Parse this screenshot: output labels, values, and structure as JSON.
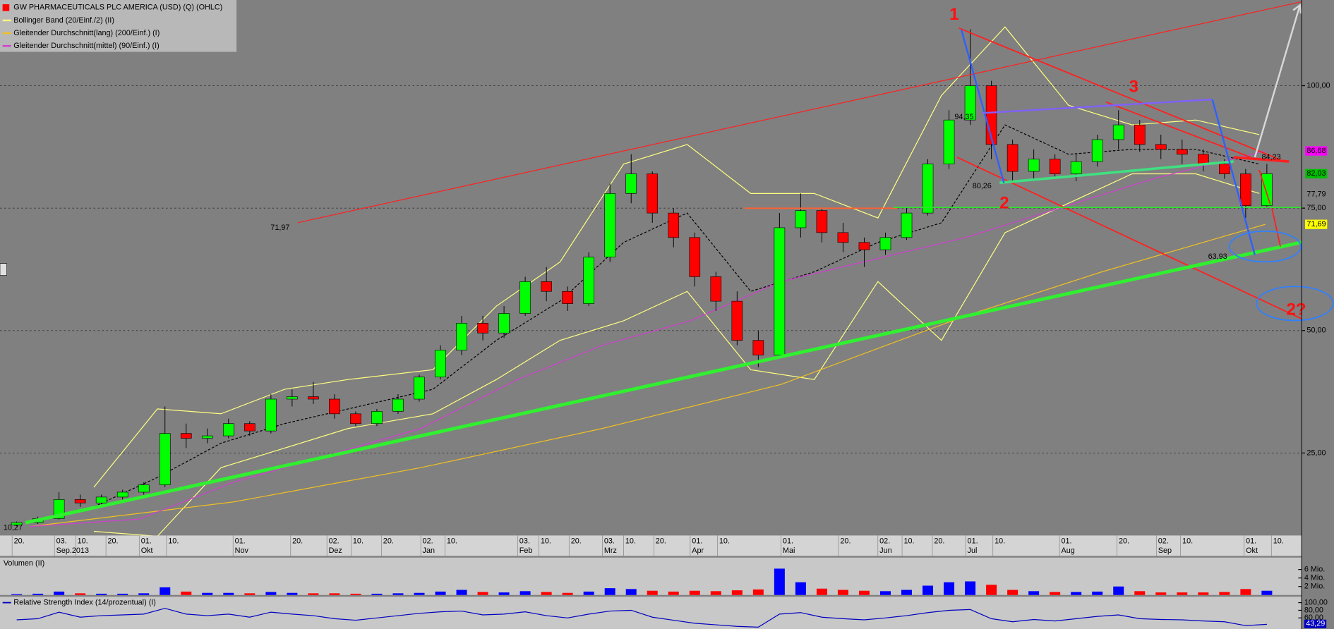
{
  "chart_data": {
    "type": "candlestick",
    "title": "GW PHARMACEUTICALS PLC AMERICA (USD) (Q) (OHLC)",
    "xlim": [
      "2013-08-16",
      "2014-10-20"
    ],
    "ylim": [
      8.5,
      117.5
    ],
    "yticks": [
      {
        "value": 100,
        "label": "100,00"
      },
      {
        "value": 75,
        "label": "75,00"
      },
      {
        "value": 50,
        "label": "50,00"
      },
      {
        "value": 25,
        "label": "25,00"
      }
    ],
    "grid": true,
    "xticks": [
      {
        "value": "2013-08-20",
        "label": "20."
      },
      {
        "value": "2013-09-03",
        "label": "03."
      },
      {
        "value": "2013-09-10",
        "label": "10."
      },
      {
        "value": "2013-09-20",
        "label": "20."
      },
      {
        "value": "2013-10-01",
        "label": "01."
      },
      {
        "value": "2013-10-10",
        "label": "10."
      },
      {
        "value": "2013-11-01",
        "label": "01."
      },
      {
        "value": "2013-11-20",
        "label": "20."
      },
      {
        "value": "2013-12-02",
        "label": "02."
      },
      {
        "value": "2013-12-10",
        "label": "10."
      },
      {
        "value": "2013-12-20",
        "label": "20."
      },
      {
        "value": "2014-01-02",
        "label": "02."
      },
      {
        "value": "2014-01-10",
        "label": "10."
      },
      {
        "value": "2014-02-03",
        "label": "03."
      },
      {
        "value": "2014-02-10",
        "label": "10."
      },
      {
        "value": "2014-02-20",
        "label": "20."
      },
      {
        "value": "2014-03-03",
        "label": "03."
      },
      {
        "value": "2014-03-10",
        "label": "10."
      },
      {
        "value": "2014-03-20",
        "label": "20."
      },
      {
        "value": "2014-04-01",
        "label": "01."
      },
      {
        "value": "2014-04-10",
        "label": "10."
      },
      {
        "value": "2014-05-01",
        "label": "01."
      },
      {
        "value": "2014-05-20",
        "label": "20."
      },
      {
        "value": "2014-06-02",
        "label": "02."
      },
      {
        "value": "2014-06-10",
        "label": "10."
      },
      {
        "value": "2014-06-20",
        "label": "20."
      },
      {
        "value": "2014-07-01",
        "label": "01."
      },
      {
        "value": "2014-07-10",
        "label": "10."
      },
      {
        "value": "2014-08-01",
        "label": "01."
      },
      {
        "value": "2014-08-20",
        "label": "20."
      },
      {
        "value": "2014-09-02",
        "label": "02."
      },
      {
        "value": "2014-09-10",
        "label": "10."
      },
      {
        "value": "2014-10-01",
        "label": "01."
      },
      {
        "value": "2014-10-10",
        "label": "10."
      }
    ],
    "xtick_months": [
      {
        "value": "2013-09-03",
        "label": "Sep.2013"
      },
      {
        "value": "2013-10-01",
        "label": "Okt"
      },
      {
        "value": "2013-11-01",
        "label": "Nov"
      },
      {
        "value": "2013-12-02",
        "label": "Dez"
      },
      {
        "value": "2014-01-02",
        "label": "Jan"
      },
      {
        "value": "2014-02-03",
        "label": "Feb"
      },
      {
        "value": "2014-03-03",
        "label": "Mrz"
      },
      {
        "value": "2014-04-01",
        "label": "Apr"
      },
      {
        "value": "2014-05-01",
        "label": "Mai"
      },
      {
        "value": "2014-06-02",
        "label": "Jun"
      },
      {
        "value": "2014-07-01",
        "label": "Jul"
      },
      {
        "value": "2014-08-01",
        "label": "Aug"
      },
      {
        "value": "2014-09-02",
        "label": "Sep"
      },
      {
        "value": "2014-10-01",
        "label": "Okt"
      }
    ],
    "x": [
      "2013-08-19",
      "2013-08-26",
      "2013-09-02",
      "2013-09-09",
      "2013-09-16",
      "2013-09-23",
      "2013-09-30",
      "2013-10-07",
      "2013-10-14",
      "2013-10-21",
      "2013-10-28",
      "2013-11-04",
      "2013-11-11",
      "2013-11-18",
      "2013-11-25",
      "2013-12-02",
      "2013-12-09",
      "2013-12-16",
      "2013-12-23",
      "2013-12-30",
      "2014-01-06",
      "2014-01-13",
      "2014-01-20",
      "2014-01-27",
      "2014-02-03",
      "2014-02-10",
      "2014-02-17",
      "2014-02-24",
      "2014-03-03",
      "2014-03-10",
      "2014-03-17",
      "2014-03-24",
      "2014-03-31",
      "2014-04-07",
      "2014-04-14",
      "2014-04-21",
      "2014-04-28",
      "2014-05-05",
      "2014-05-12",
      "2014-05-19",
      "2014-05-26",
      "2014-06-02",
      "2014-06-09",
      "2014-06-16",
      "2014-06-23",
      "2014-06-30",
      "2014-07-07",
      "2014-07-14",
      "2014-07-21",
      "2014-07-28",
      "2014-08-04",
      "2014-08-11",
      "2014-08-18",
      "2014-08-25",
      "2014-09-01",
      "2014-09-08",
      "2014-09-15",
      "2014-09-22",
      "2014-09-29",
      "2014-10-06"
    ],
    "ohlc": [
      [
        10.3,
        11,
        10,
        10.8
      ],
      [
        10.8,
        12,
        10.5,
        11.6
      ],
      [
        11.6,
        17,
        11.4,
        15.5
      ],
      [
        15.5,
        16.5,
        14,
        14.8
      ],
      [
        14.8,
        16.5,
        14.5,
        16
      ],
      [
        16,
        17.5,
        15.5,
        17
      ],
      [
        17,
        19,
        16.5,
        18.5
      ],
      [
        18.5,
        34.5,
        18,
        29
      ],
      [
        29,
        31,
        26,
        28
      ],
      [
        28,
        30,
        27,
        28.5
      ],
      [
        28.5,
        32,
        28,
        31
      ],
      [
        31,
        31.5,
        28.5,
        29.5
      ],
      [
        29.5,
        37,
        29,
        36
      ],
      [
        36,
        38,
        34.5,
        36.5
      ],
      [
        36.5,
        39.5,
        35,
        36
      ],
      [
        36,
        37,
        32,
        33
      ],
      [
        33,
        33.5,
        30.5,
        31
      ],
      [
        31,
        34,
        30.5,
        33.5
      ],
      [
        33.5,
        37,
        33,
        36
      ],
      [
        36,
        41,
        35.5,
        40.5
      ],
      [
        40.5,
        47,
        40,
        46
      ],
      [
        46,
        53,
        45,
        51.5
      ],
      [
        51.5,
        53,
        48,
        49.5
      ],
      [
        49.5,
        55,
        48.5,
        53.5
      ],
      [
        53.5,
        61,
        53,
        60
      ],
      [
        60,
        63,
        56,
        58
      ],
      [
        58,
        59,
        54,
        55.5
      ],
      [
        55.5,
        66,
        55,
        65
      ],
      [
        65,
        80,
        64,
        78
      ],
      [
        78,
        86,
        76,
        82
      ],
      [
        82,
        82.5,
        72,
        74
      ],
      [
        74,
        75,
        67,
        69
      ],
      [
        69,
        70,
        59,
        61
      ],
      [
        61,
        62,
        54,
        56
      ],
      [
        56,
        58,
        47,
        48
      ],
      [
        48,
        50,
        42.5,
        45
      ],
      [
        45,
        74,
        44.5,
        71
      ],
      [
        71,
        78,
        69,
        74.5
      ],
      [
        74.5,
        75,
        68,
        70
      ],
      [
        70,
        72,
        66,
        68
      ],
      [
        68,
        69,
        63,
        66.5
      ],
      [
        66.5,
        70,
        65.5,
        69
      ],
      [
        69,
        75,
        68.5,
        74
      ],
      [
        74,
        85,
        73.5,
        84
      ],
      [
        84,
        95,
        83,
        93
      ],
      [
        93,
        111.5,
        92,
        100
      ],
      [
        100,
        101,
        85,
        88
      ],
      [
        88,
        89,
        80,
        82.5
      ],
      [
        82.5,
        87,
        81,
        85
      ],
      [
        85,
        86,
        81,
        82
      ],
      [
        82,
        86,
        80.5,
        84.5
      ],
      [
        84.5,
        90,
        83.5,
        89
      ],
      [
        89,
        95,
        87,
        92
      ],
      [
        92,
        93,
        86.5,
        88
      ],
      [
        88,
        90,
        85,
        87
      ],
      [
        87,
        89,
        84,
        86
      ],
      [
        86,
        87,
        82.5,
        84
      ],
      [
        84,
        85,
        81,
        82
      ],
      [
        82,
        83,
        73,
        75.5
      ],
      [
        75.5,
        84,
        75,
        82.03
      ]
    ],
    "up_color": "#00ff00",
    "down_color": "#ff0000",
    "series": [
      {
        "name": "Bollinger Band (20/Einf./2) (II)",
        "color": "#ffff80",
        "mid_color": "#000000",
        "x": [
          "2013-09-16",
          "2013-10-07",
          "2013-10-28",
          "2013-11-18",
          "2013-12-09",
          "2014-01-06",
          "2014-01-27",
          "2014-02-17",
          "2014-03-10",
          "2014-03-31",
          "2014-04-21",
          "2014-05-12",
          "2014-06-02",
          "2014-06-23",
          "2014-07-14",
          "2014-08-04",
          "2014-08-25",
          "2014-09-15",
          "2014-10-06"
        ],
        "upper": [
          18,
          34,
          33,
          38,
          40,
          42,
          55,
          64,
          84,
          88,
          78,
          78,
          73,
          98,
          112,
          96,
          92,
          93,
          90
        ],
        "values": [
          14,
          20,
          27,
          31,
          34,
          38,
          48,
          56,
          68,
          74,
          58,
          62,
          68,
          72,
          92,
          86,
          87,
          87,
          84
        ],
        "lower": [
          9,
          8,
          22,
          26,
          30,
          33,
          40,
          48,
          52,
          58,
          42,
          40,
          60,
          48,
          70,
          76,
          82,
          82,
          78
        ]
      },
      {
        "name": "Gleitender Durchschnitt(lang) (200/Einf.) (I)",
        "color": "#f0c020",
        "x": [
          "2013-08-26",
          "2013-11-01",
          "2014-01-02",
          "2014-03-03",
          "2014-05-01",
          "2014-07-01",
          "2014-08-15",
          "2014-10-08"
        ],
        "values": [
          10,
          15,
          22,
          30,
          39,
          53,
          62,
          71.69
        ]
      },
      {
        "name": "Gleitender Durchschnitt(mittel) (90/Einf.) (I)",
        "color": "#d040d0",
        "x": [
          "2013-08-26",
          "2013-10-01",
          "2013-11-01",
          "2014-01-02",
          "2014-02-03",
          "2014-03-03",
          "2014-04-01",
          "2014-05-01",
          "2014-07-01",
          "2014-08-01",
          "2014-09-01",
          "2014-10-08"
        ],
        "values": [
          10,
          11.5,
          19,
          30,
          40,
          47,
          52,
          60,
          69,
          75,
          81,
          86.68
        ]
      }
    ],
    "price_labels": [
      {
        "value": 86.68,
        "label": "86,68",
        "color": "#ff00ff"
      },
      {
        "value": 82.03,
        "label": "82,03",
        "color": "#00c000"
      },
      {
        "value": 77.79,
        "label": "77,79",
        "color": "#808080"
      },
      {
        "value": 71.69,
        "label": "71,69",
        "color": "#ffff00"
      }
    ],
    "annotations": [
      {
        "label": "1"
      },
      {
        "label": "2"
      },
      {
        "label": "3"
      },
      {
        "label": "2?"
      },
      {
        "label": "94,35"
      },
      {
        "label": "80,26"
      },
      {
        "label": "71,97"
      },
      {
        "label": "63,93"
      },
      {
        "label": "84,23"
      },
      {
        "label": "10,27"
      }
    ],
    "volume": {
      "title": "Volumen (II)",
      "ylim": [
        0,
        8.8
      ],
      "yticks": [
        {
          "value": 6,
          "label": "6 Mio."
        },
        {
          "value": 4,
          "label": "4 Mio."
        },
        {
          "value": 2,
          "label": "2 Mio."
        }
      ],
      "up_color": "#0000ff",
      "down_color": "#ff0000",
      "values": [
        0.2,
        0.3,
        0.8,
        0.4,
        0.3,
        0.3,
        0.4,
        1.8,
        0.8,
        0.5,
        0.5,
        0.4,
        0.7,
        0.5,
        0.4,
        0.4,
        0.3,
        0.3,
        0.4,
        0.5,
        0.8,
        1.2,
        0.7,
        0.6,
        0.9,
        0.7,
        0.5,
        0.8,
        1.6,
        1.4,
        1.0,
        0.8,
        1.0,
        0.9,
        1.1,
        1.3,
        6.2,
        3.0,
        1.5,
        1.2,
        1.0,
        0.9,
        1.2,
        2.2,
        3.0,
        3.2,
        2.4,
        1.2,
        0.9,
        0.7,
        0.7,
        0.8,
        2.0,
        0.9,
        0.6,
        0.6,
        0.6,
        0.7,
        1.4,
        1.0
      ]
    },
    "rsi": {
      "title": "Relative Strength Index (14/prozentual) (I)",
      "color": "#0000c0",
      "ylim": [
        31,
        115.6
      ],
      "yticks": [
        {
          "value": 100,
          "label": "100,00"
        },
        {
          "value": 80,
          "label": "80,00"
        },
        {
          "value": 60,
          "label": "60,00"
        }
      ],
      "last_label": "43,29",
      "values": [
        55,
        58,
        75,
        62,
        66,
        68,
        70,
        85,
        70,
        66,
        70,
        62,
        75,
        70,
        66,
        58,
        54,
        60,
        66,
        72,
        76,
        78,
        68,
        70,
        76,
        66,
        60,
        70,
        78,
        80,
        62,
        54,
        46,
        42,
        38,
        36,
        70,
        74,
        62,
        58,
        55,
        60,
        66,
        74,
        80,
        82,
        58,
        50,
        56,
        52,
        58,
        64,
        68,
        58,
        56,
        55,
        52,
        50,
        40,
        43.29
      ]
    }
  }
}
